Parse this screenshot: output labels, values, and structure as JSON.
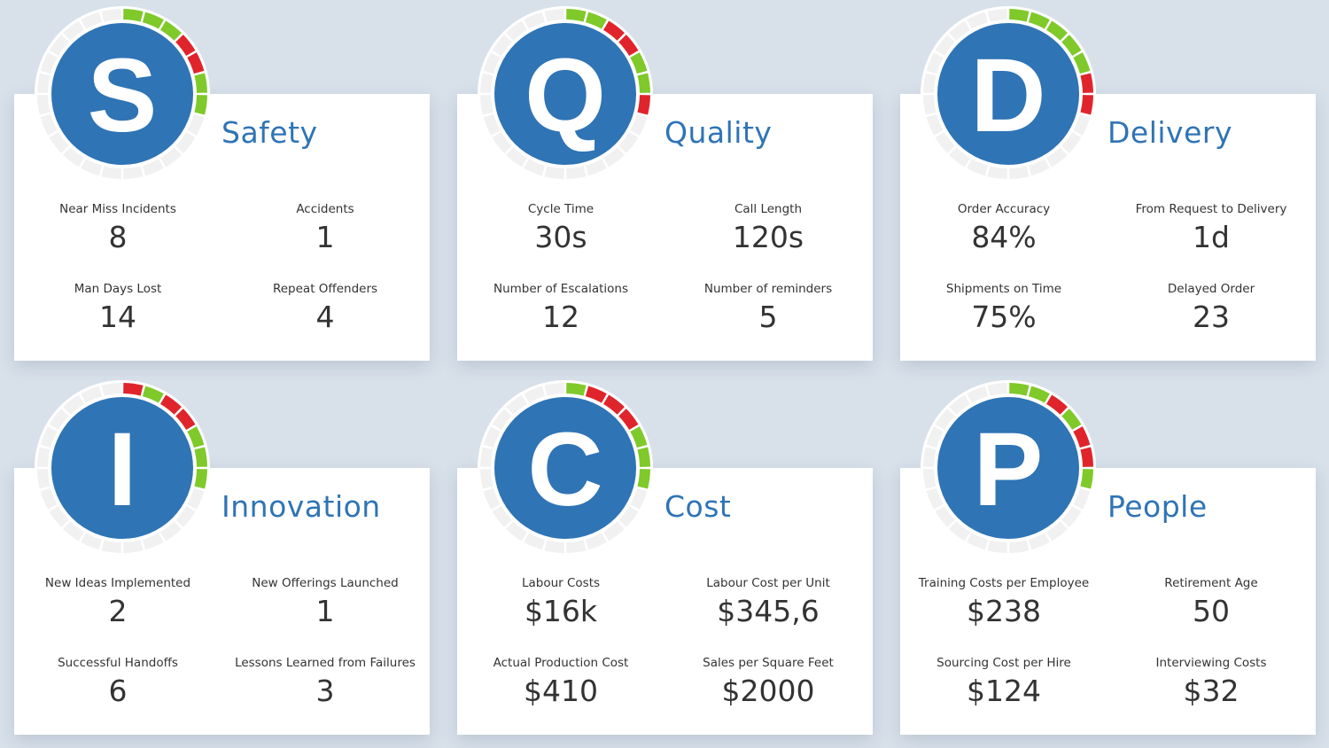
{
  "colors": {
    "accent": "#2f74b5",
    "good": "#7fc92a",
    "bad": "#e0242c",
    "ring": "#f1f1f1"
  },
  "cards": [
    {
      "letter": "S",
      "title": "Safety",
      "gauge": [
        "good",
        "good",
        "good",
        "bad",
        "bad",
        "good",
        "good"
      ],
      "metrics": [
        {
          "label": "Near Miss Incidents",
          "value": "8"
        },
        {
          "label": "Accidents",
          "value": "1"
        },
        {
          "label": "Man Days Lost",
          "value": "14"
        },
        {
          "label": "Repeat Offenders",
          "value": "4"
        }
      ]
    },
    {
      "letter": "Q",
      "title": "Quality",
      "gauge": [
        "good",
        "good",
        "bad",
        "bad",
        "good",
        "good",
        "bad"
      ],
      "metrics": [
        {
          "label": "Cycle Time",
          "value": "30s"
        },
        {
          "label": "Call Length",
          "value": "120s"
        },
        {
          "label": "Number of Escalations",
          "value": "12"
        },
        {
          "label": "Number of reminders",
          "value": "5"
        }
      ]
    },
    {
      "letter": "D",
      "title": "Delivery",
      "gauge": [
        "good",
        "good",
        "good",
        "good",
        "good",
        "bad",
        "bad"
      ],
      "metrics": [
        {
          "label": "Order Accuracy",
          "value": "84%"
        },
        {
          "label": "From Request to Delivery",
          "value": "1d"
        },
        {
          "label": "Shipments on Time",
          "value": "75%"
        },
        {
          "label": "Delayed Order",
          "value": "23"
        }
      ]
    },
    {
      "letter": "I",
      "title": "Innovation",
      "gauge": [
        "bad",
        "good",
        "bad",
        "bad",
        "good",
        "good",
        "good"
      ],
      "metrics": [
        {
          "label": "New Ideas Implemented",
          "value": "2"
        },
        {
          "label": "New Offerings Launched",
          "value": "1"
        },
        {
          "label": "Successful Handoffs",
          "value": "6"
        },
        {
          "label": "Lessons Learned from Failures",
          "value": "3"
        }
      ]
    },
    {
      "letter": "C",
      "title": "Cost",
      "gauge": [
        "good",
        "bad",
        "bad",
        "bad",
        "good",
        "good",
        "good"
      ],
      "metrics": [
        {
          "label": "Labour Costs",
          "value": "$16k"
        },
        {
          "label": "Labour Cost per Unit",
          "value": "$345,6"
        },
        {
          "label": "Actual Production Cost",
          "value": "$410"
        },
        {
          "label": "Sales per Square Feet",
          "value": "$2000"
        }
      ]
    },
    {
      "letter": "P",
      "title": "People",
      "gauge": [
        "good",
        "good",
        "bad",
        "good",
        "bad",
        "bad",
        "good"
      ],
      "metrics": [
        {
          "label": "Training Costs per Employee",
          "value": "$238"
        },
        {
          "label": "Retirement Age",
          "value": "50"
        },
        {
          "label": "Sourcing Cost per Hire",
          "value": "$124"
        },
        {
          "label": "Interviewing Costs",
          "value": "$32"
        }
      ]
    }
  ]
}
